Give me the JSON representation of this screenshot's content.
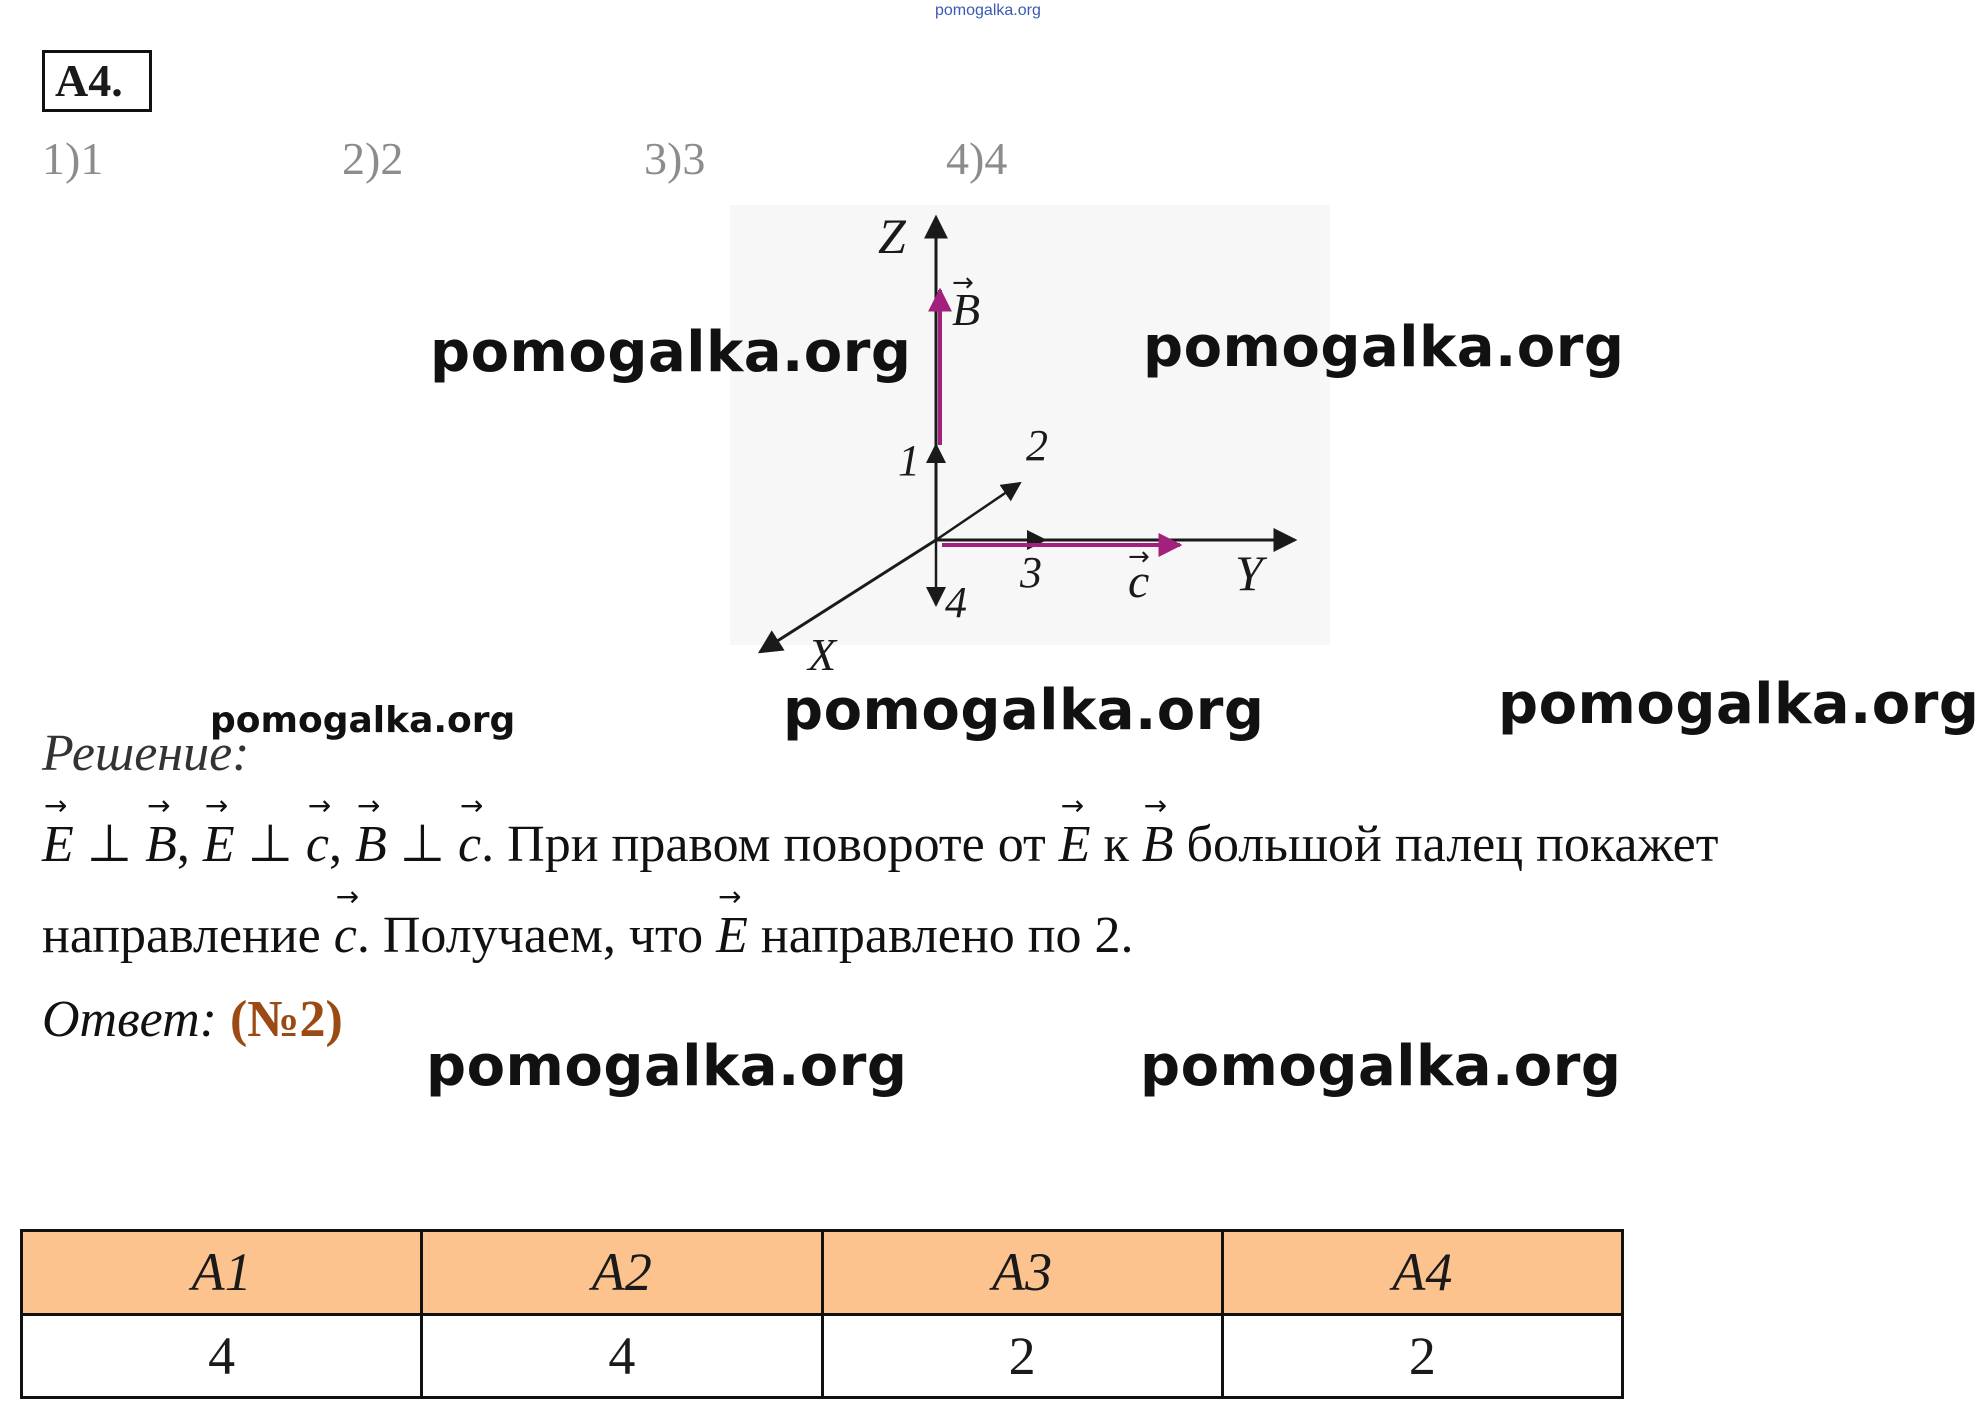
{
  "header": {
    "site_mark": "pomogalka.org",
    "task_label": "A4."
  },
  "options": [
    "1)1",
    "2)2",
    "3)3",
    "4)4"
  ],
  "diagram": {
    "axis_z": "Z",
    "axis_y": "Y",
    "axis_x": "X",
    "vector_b": "B",
    "vector_c": "c",
    "dir_1": "1",
    "dir_2": "2",
    "dir_3": "3",
    "dir_4": "4",
    "colors": {
      "axes": "#1a1a1a",
      "vectors": "#a3207d"
    }
  },
  "watermark": "pomogalka.org",
  "solution": {
    "label": "Решение:",
    "line1": {
      "E1": "E",
      "perp1": " ⊥ ",
      "B1": "B",
      "sep1": ",  ",
      "E2": "E",
      "perp2": " ⊥ ",
      "c1": "c",
      "sep2": ",  ",
      "B2": "B",
      "perp3": " ⊥ ",
      "c2": "c",
      "text1": ". При правом повороте от ",
      "E3": "E",
      "text2": " к ",
      "B3": "B",
      "text3": " большой палец покажет"
    },
    "line2": {
      "text1": "направление ",
      "c3": "c",
      "text2": ". Получаем, что ",
      "E4": "E",
      "text3": " направлено по 2."
    }
  },
  "answer": {
    "label": "Ответ:",
    "value": "(№2)"
  },
  "answers_table": {
    "headers": [
      "A1",
      "A2",
      "A3",
      "A4"
    ],
    "values": [
      "4",
      "4",
      "2",
      "2"
    ]
  }
}
